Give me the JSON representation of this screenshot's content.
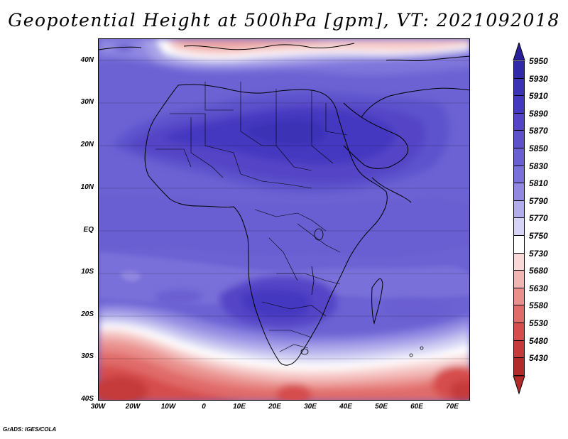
{
  "title": "Geopotential Height at 500hPa [gpm], VT: 2021092018",
  "credit": "GrADS: IGES/COLA",
  "map": {
    "variable": "Geopotential Height at 500hPa",
    "units": "gpm",
    "valid_time": "2021092018",
    "region": "Africa and surrounding waters",
    "lat_ticks": [
      "40N",
      "30N",
      "20N",
      "10N",
      "EQ",
      "10S",
      "20S",
      "30S",
      "40S"
    ],
    "lon_ticks": [
      "30W",
      "20W",
      "10W",
      "0",
      "10E",
      "20E",
      "30E",
      "40E",
      "50E",
      "60E",
      "70E"
    ]
  },
  "colorbar": {
    "levels": [
      "5950",
      "5930",
      "5910",
      "5890",
      "5870",
      "5850",
      "5830",
      "5810",
      "5790",
      "5770",
      "5750",
      "5730",
      "5680",
      "5630",
      "5580",
      "5530",
      "5480",
      "5430"
    ],
    "colors": [
      "#312aa8",
      "#3b33b5",
      "#4438c0",
      "#5445c6",
      "#5d52cc",
      "#6a5fd2",
      "#7a70d9",
      "#9189e1",
      "#b2adeb",
      "#d6d4f4",
      "#ffffff",
      "#f8d8d8",
      "#f1b6b4",
      "#e9908d",
      "#e06c6a",
      "#d64d4d",
      "#c53a3a",
      "#b22a2a"
    ],
    "top_arrow_color": "#2a1f9a",
    "bottom_arrow_color": "#b22a2a"
  }
}
